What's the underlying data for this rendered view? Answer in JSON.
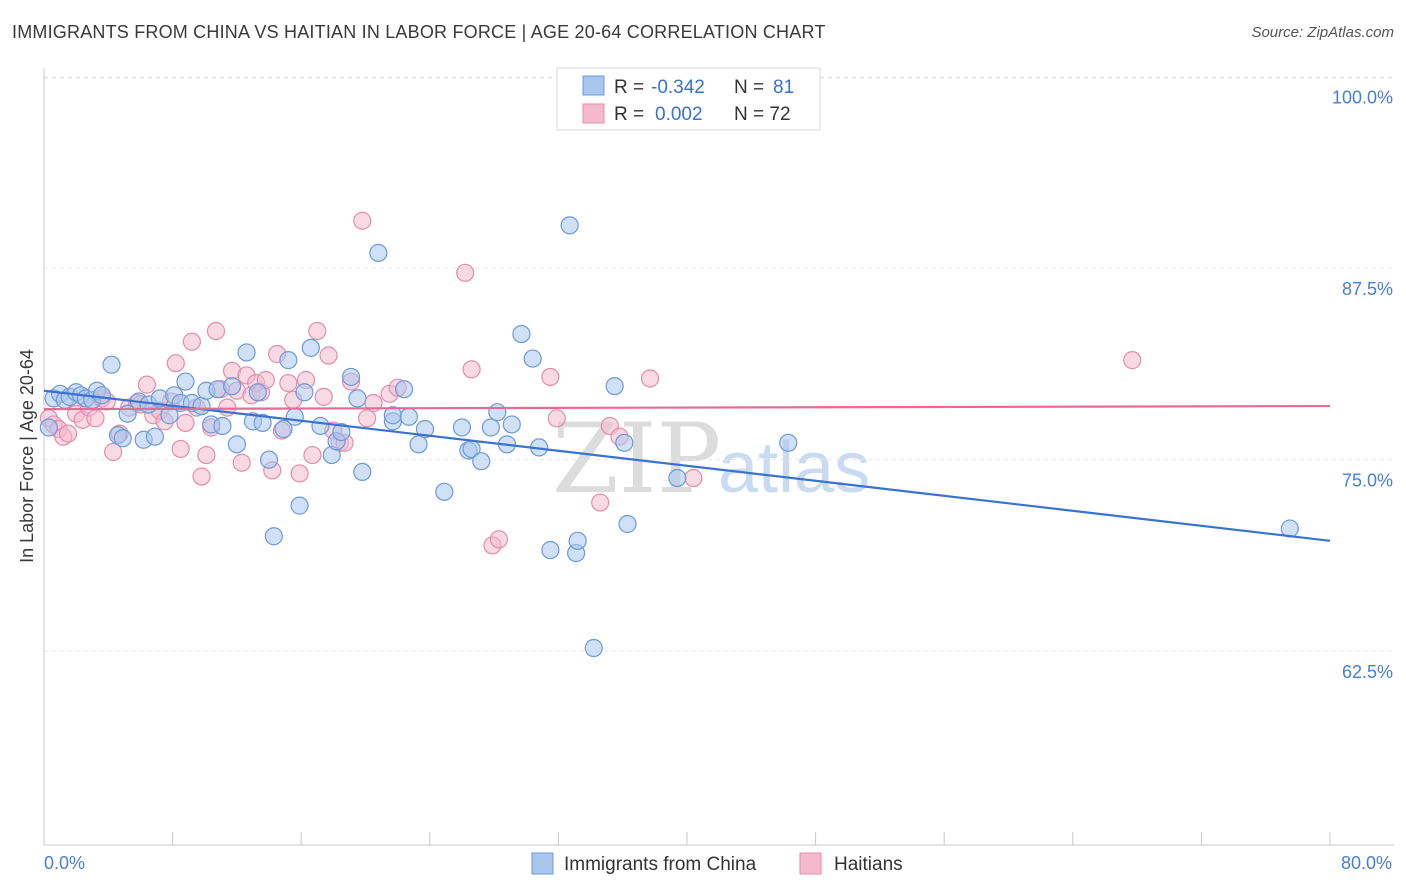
{
  "title": "IMMIGRANTS FROM CHINA VS HAITIAN IN LABOR FORCE | AGE 20-64 CORRELATION CHART",
  "source": "Source: ZipAtlas.com",
  "watermark": {
    "zip": "ZIP",
    "atlas": "atlas"
  },
  "colors": {
    "blue": "#3a72d0",
    "blue_fill": "#a9c6ef",
    "pink": "#e46b96",
    "pink_fill": "#f4b9cd",
    "tick": "#4a7fd0"
  },
  "legend": {
    "rows": [
      {
        "r_label": "R =",
        "r_value": "-0.342",
        "n_label": "N =",
        "n_value": "81"
      },
      {
        "r_label": "R =",
        "r_value": "0.002",
        "n_label": "N = 72",
        "n_value": ""
      }
    ]
  },
  "bottom_legend": [
    "Immigrants from China",
    "Haitians"
  ],
  "chart_data": {
    "type": "scatter",
    "title": "IMMIGRANTS FROM CHINA VS HAITIAN IN LABOR FORCE | AGE 20-64 CORRELATION CHART",
    "xlabel": "",
    "ylabel": "In Labor Force | Age 20-64",
    "xlim": [
      0,
      80
    ],
    "ylim": [
      51.5,
      102
    ],
    "x_tick_labels": [
      "0.0%",
      "80.0%"
    ],
    "y_ticks": [
      62.5,
      75.0,
      87.5,
      100.0
    ],
    "y_tick_labels": [
      "62.5%",
      "75.0%",
      "87.5%",
      "100.0%"
    ],
    "grid": true,
    "series": [
      {
        "name": "Immigrants from China",
        "color": "#3a72d0",
        "R": -0.342,
        "N": 81,
        "trend": {
          "x": [
            0,
            80
          ],
          "y": [
            80.8,
            71.0
          ]
        },
        "points": [
          [
            0.3,
            78.4
          ],
          [
            0.6,
            80.3
          ],
          [
            1.0,
            80.6
          ],
          [
            1.3,
            80.2
          ],
          [
            1.6,
            80.4
          ],
          [
            2.0,
            80.7
          ],
          [
            2.3,
            80.5
          ],
          [
            2.6,
            80.3
          ],
          [
            3.0,
            80.2
          ],
          [
            3.3,
            80.8
          ],
          [
            3.6,
            80.5
          ],
          [
            4.2,
            82.5
          ],
          [
            4.6,
            77.9
          ],
          [
            4.9,
            77.7
          ],
          [
            5.2,
            79.3
          ],
          [
            5.9,
            80.1
          ],
          [
            6.2,
            77.6
          ],
          [
            6.5,
            79.9
          ],
          [
            6.9,
            77.8
          ],
          [
            7.2,
            80.3
          ],
          [
            7.8,
            79.2
          ],
          [
            8.1,
            80.5
          ],
          [
            8.5,
            80.0
          ],
          [
            8.8,
            81.4
          ],
          [
            9.2,
            80.0
          ],
          [
            9.8,
            79.8
          ],
          [
            10.1,
            80.8
          ],
          [
            10.4,
            78.6
          ],
          [
            10.8,
            80.9
          ],
          [
            11.1,
            78.5
          ],
          [
            11.7,
            81.1
          ],
          [
            12.0,
            77.3
          ],
          [
            12.6,
            83.3
          ],
          [
            13.0,
            78.8
          ],
          [
            13.3,
            80.7
          ],
          [
            13.6,
            78.7
          ],
          [
            14.0,
            76.3
          ],
          [
            14.3,
            71.3
          ],
          [
            14.9,
            78.3
          ],
          [
            15.2,
            82.8
          ],
          [
            15.6,
            79.1
          ],
          [
            15.9,
            73.3
          ],
          [
            16.2,
            80.7
          ],
          [
            16.6,
            83.6
          ],
          [
            17.2,
            78.5
          ],
          [
            17.9,
            76.6
          ],
          [
            18.2,
            77.5
          ],
          [
            18.5,
            78.1
          ],
          [
            19.1,
            81.7
          ],
          [
            19.5,
            80.3
          ],
          [
            19.8,
            75.5
          ],
          [
            20.8,
            89.8
          ],
          [
            21.7,
            78.8
          ],
          [
            21.7,
            79.2
          ],
          [
            22.4,
            80.9
          ],
          [
            22.7,
            79.1
          ],
          [
            23.3,
            77.3
          ],
          [
            23.7,
            78.3
          ],
          [
            24.9,
            74.2
          ],
          [
            26.0,
            78.4
          ],
          [
            26.4,
            76.9
          ],
          [
            26.6,
            77.0
          ],
          [
            27.2,
            76.2
          ],
          [
            27.8,
            78.4
          ],
          [
            28.2,
            79.4
          ],
          [
            28.8,
            77.3
          ],
          [
            29.1,
            78.6
          ],
          [
            29.7,
            84.5
          ],
          [
            30.4,
            82.9
          ],
          [
            30.8,
            77.1
          ],
          [
            31.5,
            70.4
          ],
          [
            32.7,
            91.6
          ],
          [
            33.1,
            70.2
          ],
          [
            34.2,
            64.0
          ],
          [
            35.5,
            81.1
          ],
          [
            36.1,
            77.4
          ],
          [
            36.3,
            72.1
          ],
          [
            39.4,
            75.1
          ],
          [
            46.3,
            77.4
          ],
          [
            33.2,
            71.0
          ],
          [
            77.5,
            71.8
          ]
        ]
      },
      {
        "name": "Haitians",
        "color": "#e46b96",
        "R": 0.002,
        "N": 72,
        "trend": {
          "x": [
            0,
            80
          ],
          "y": [
            79.6,
            79.8
          ]
        },
        "points": [
          [
            0.3,
            79.0
          ],
          [
            0.6,
            78.6
          ],
          [
            0.9,
            78.3
          ],
          [
            1.2,
            77.8
          ],
          [
            1.5,
            78.0
          ],
          [
            2.0,
            79.3
          ],
          [
            2.4,
            78.9
          ],
          [
            2.8,
            79.7
          ],
          [
            3.2,
            79.0
          ],
          [
            3.6,
            80.3
          ],
          [
            3.9,
            80.1
          ],
          [
            4.3,
            76.8
          ],
          [
            4.7,
            78.0
          ],
          [
            5.3,
            79.7
          ],
          [
            5.8,
            80.0
          ],
          [
            6.0,
            79.9
          ],
          [
            6.4,
            81.2
          ],
          [
            6.8,
            79.2
          ],
          [
            7.2,
            79.5
          ],
          [
            7.5,
            78.8
          ],
          [
            7.9,
            80.1
          ],
          [
            8.2,
            82.6
          ],
          [
            8.5,
            77.0
          ],
          [
            8.8,
            78.7
          ],
          [
            9.2,
            84.0
          ],
          [
            9.5,
            79.7
          ],
          [
            9.8,
            75.2
          ],
          [
            10.1,
            76.6
          ],
          [
            10.4,
            78.4
          ],
          [
            10.7,
            84.7
          ],
          [
            11.0,
            80.9
          ],
          [
            11.4,
            79.7
          ],
          [
            11.7,
            82.1
          ],
          [
            12.0,
            80.8
          ],
          [
            12.3,
            76.1
          ],
          [
            12.6,
            81.8
          ],
          [
            12.9,
            80.5
          ],
          [
            13.2,
            81.3
          ],
          [
            13.5,
            80.7
          ],
          [
            13.8,
            81.5
          ],
          [
            14.2,
            75.6
          ],
          [
            14.5,
            83.2
          ],
          [
            14.8,
            78.2
          ],
          [
            15.2,
            81.3
          ],
          [
            15.5,
            80.2
          ],
          [
            15.9,
            75.4
          ],
          [
            16.3,
            81.5
          ],
          [
            16.7,
            76.6
          ],
          [
            17.0,
            84.7
          ],
          [
            17.4,
            80.4
          ],
          [
            17.7,
            83.1
          ],
          [
            18.0,
            78.2
          ],
          [
            18.4,
            77.4
          ],
          [
            18.7,
            77.4
          ],
          [
            19.1,
            81.4
          ],
          [
            19.8,
            91.9
          ],
          [
            20.1,
            79.0
          ],
          [
            20.5,
            80.0
          ],
          [
            21.5,
            80.6
          ],
          [
            22.0,
            81.0
          ],
          [
            26.2,
            88.5
          ],
          [
            26.6,
            82.2
          ],
          [
            27.9,
            70.7
          ],
          [
            28.3,
            71.1
          ],
          [
            31.5,
            81.7
          ],
          [
            31.9,
            79.0
          ],
          [
            34.6,
            73.5
          ],
          [
            35.2,
            78.5
          ],
          [
            35.8,
            77.8
          ],
          [
            37.7,
            81.6
          ],
          [
            40.4,
            75.1
          ],
          [
            67.7,
            82.8
          ]
        ]
      }
    ]
  }
}
